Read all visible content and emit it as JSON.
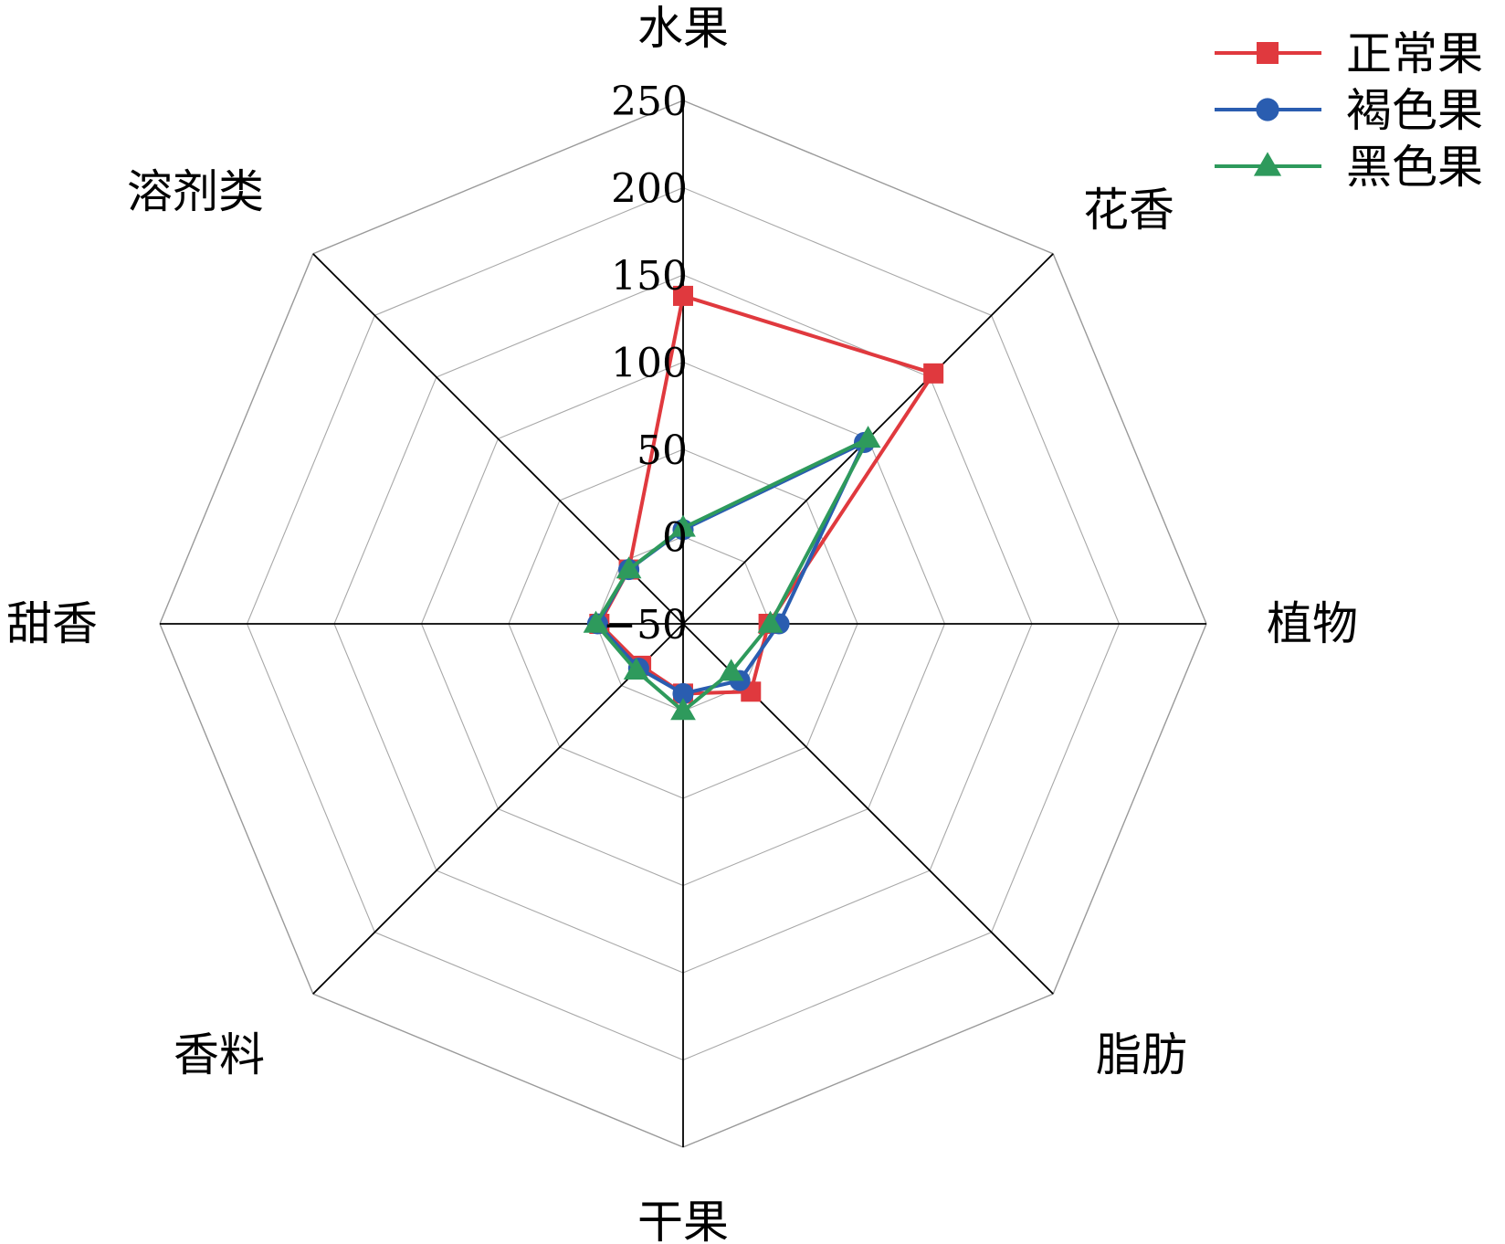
{
  "chart_data": {
    "type": "radar",
    "title": "",
    "axes": [
      "水果",
      "花香",
      "植物",
      "脂肪",
      "干果",
      "香料",
      "甜香",
      "溶剂类"
    ],
    "rlim": [
      -50,
      250
    ],
    "ticks": [
      -50,
      0,
      50,
      100,
      150,
      200,
      250
    ],
    "tick_labels": [
      "−50",
      "0",
      "50",
      "100",
      "150",
      "200",
      "250"
    ],
    "grid": true,
    "legend_position": "top-right",
    "series": [
      {
        "name": "正常果",
        "color": "#e0393e",
        "marker": "square",
        "values": [
          138,
          153,
          -1,
          5,
          -10,
          -16,
          -2,
          -6
        ]
      },
      {
        "name": "褐色果",
        "color": "#2a5db0",
        "marker": "circle",
        "values": [
          4,
          97,
          5,
          -4,
          -10,
          -14,
          -1,
          -6
        ]
      },
      {
        "name": "黑色果",
        "color": "#2e9a5c",
        "marker": "triangle",
        "values": [
          5,
          100,
          0,
          -11,
          0,
          -12,
          0,
          -6
        ]
      }
    ]
  }
}
